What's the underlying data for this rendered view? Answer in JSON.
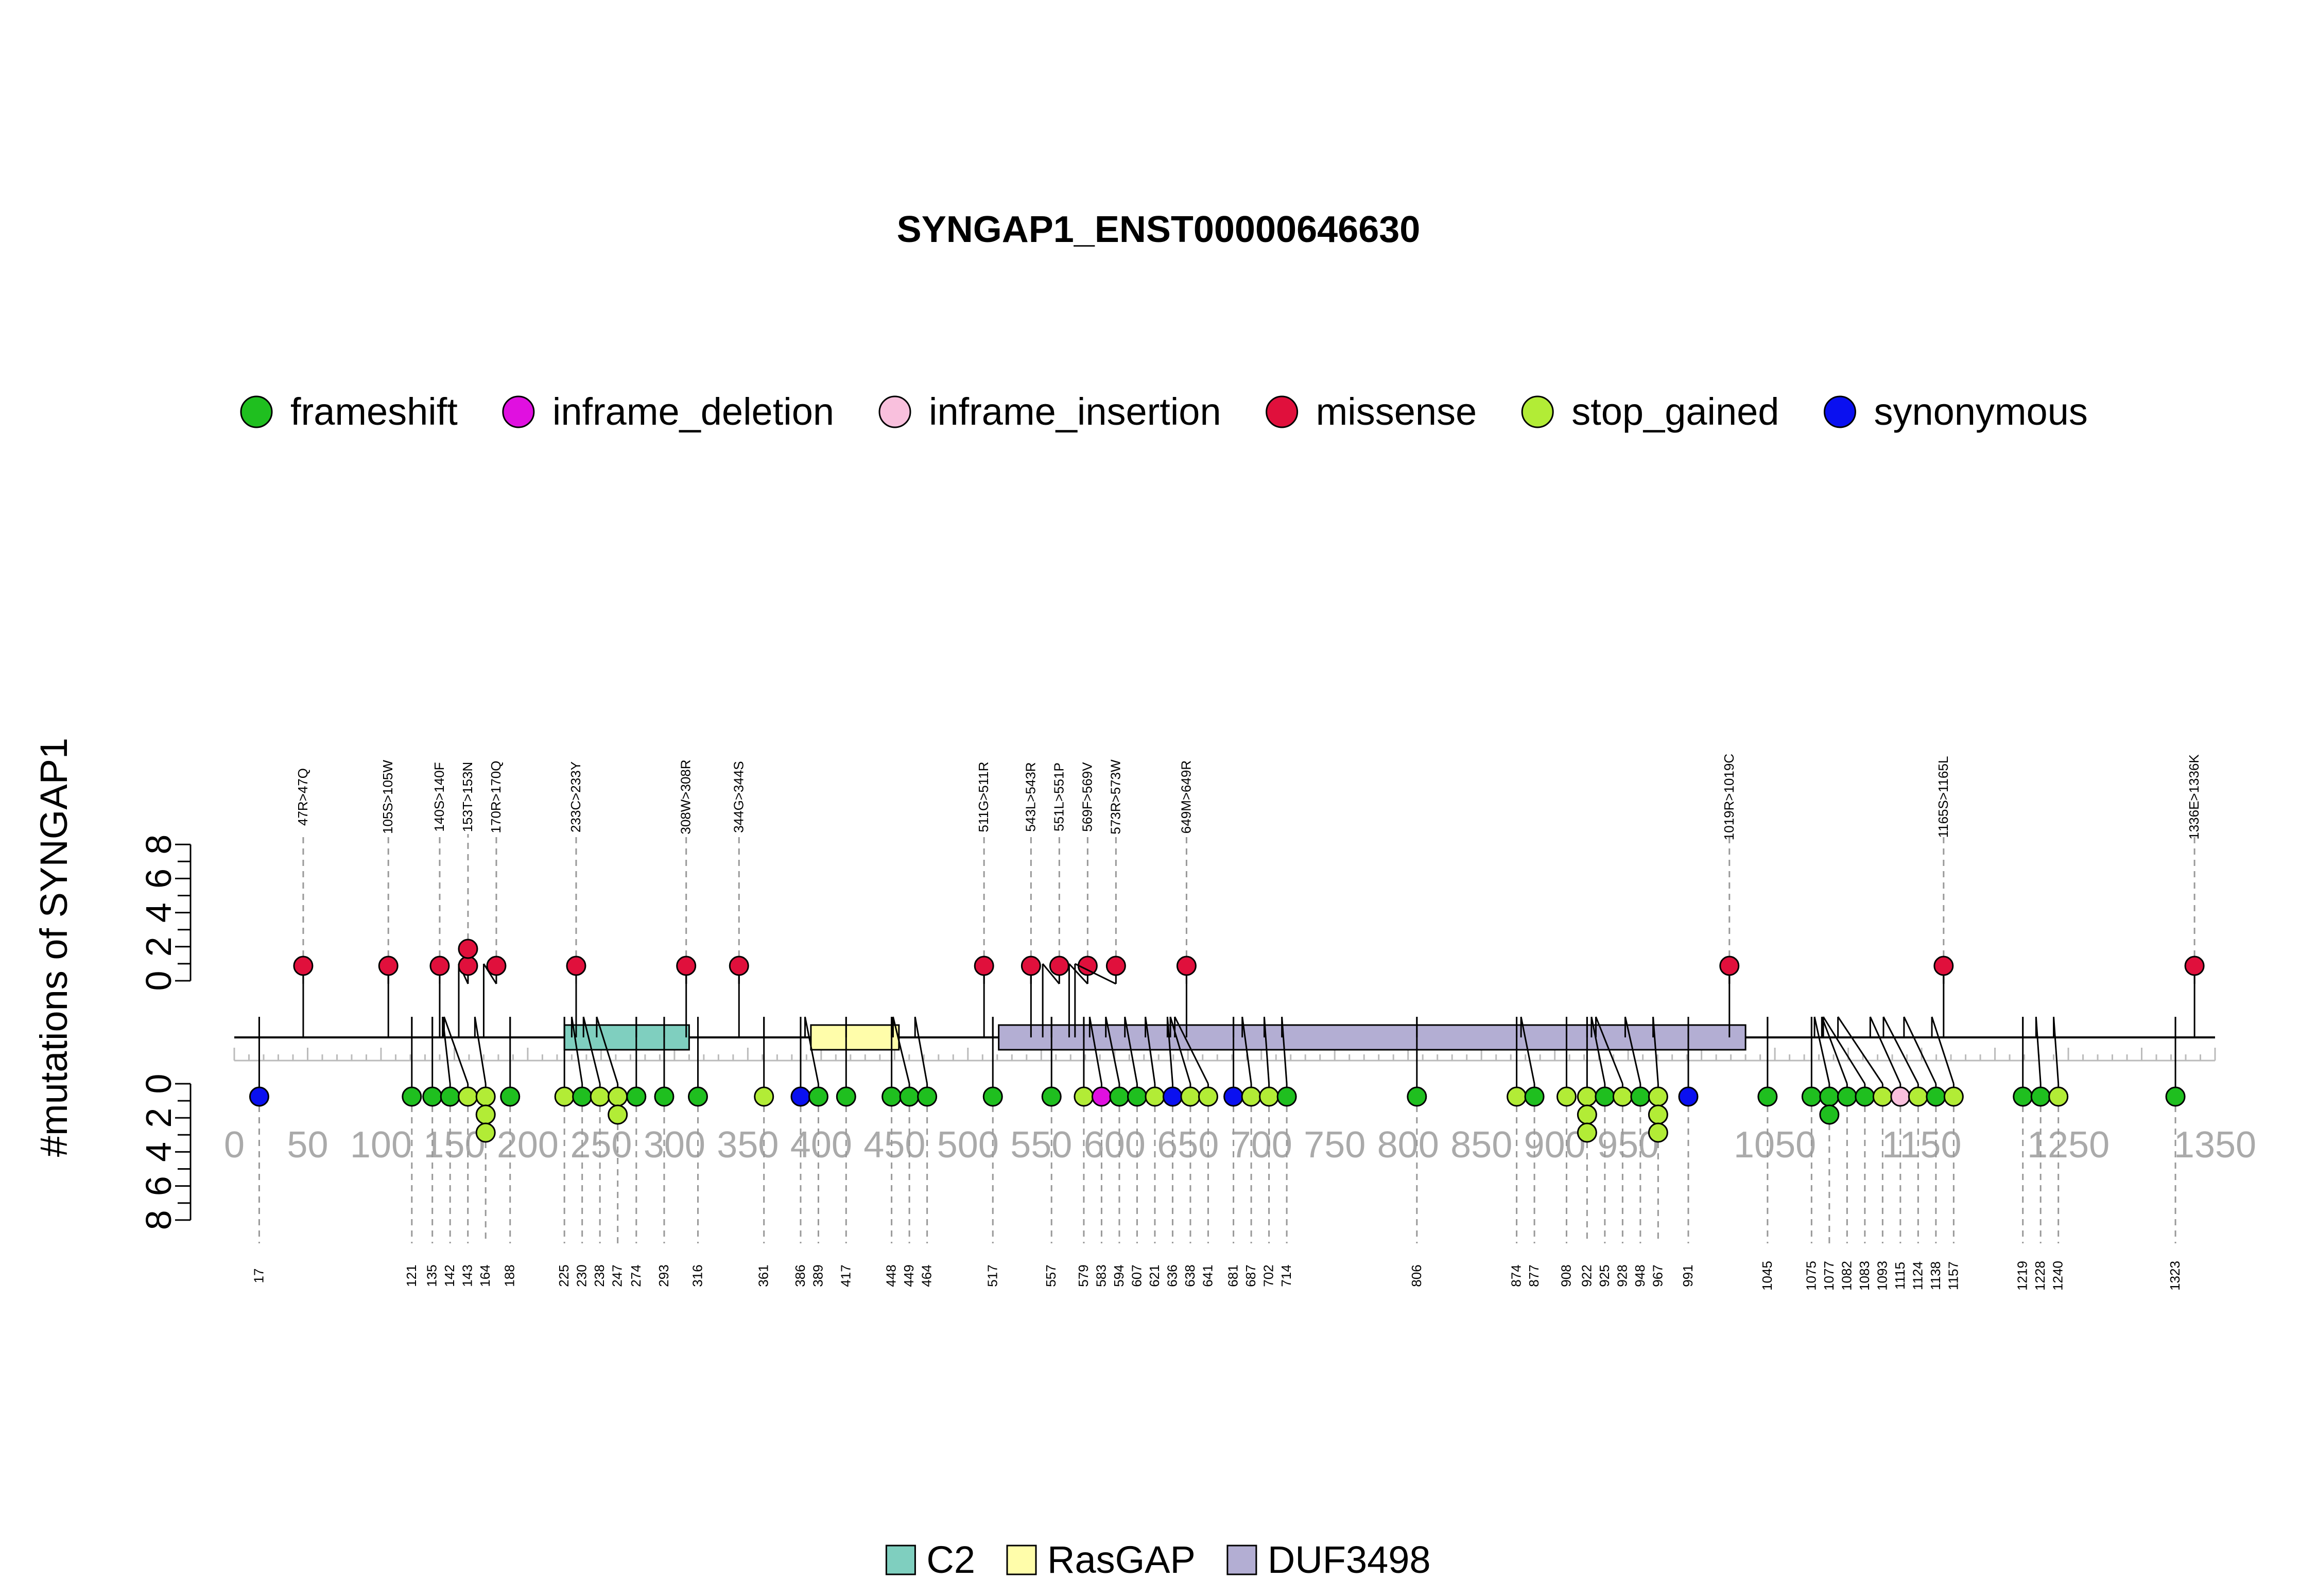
{
  "chart_data": {
    "type": "lollipop",
    "title": "SYNGAP1_ENST00000646630",
    "ylabel": "#mutations of SYNGAP1",
    "protein_length": 1350,
    "x_ticks": [
      0,
      50,
      100,
      150,
      200,
      250,
      300,
      350,
      400,
      450,
      500,
      550,
      600,
      650,
      700,
      750,
      800,
      850,
      900,
      950,
      1050,
      1150,
      1250,
      1350
    ],
    "x_tick_labels": [
      "0",
      "50",
      "100",
      "150",
      "200",
      "250",
      "300",
      "350",
      "400",
      "450",
      "500",
      "550",
      "600",
      "650",
      "700",
      "750",
      "800",
      "850",
      "900",
      "950",
      "1050",
      "1150",
      "1250",
      "1350"
    ],
    "y_ticks": [
      0,
      2,
      4,
      6,
      8
    ],
    "y_tick_labels": [
      "0",
      "2",
      "4",
      "6",
      "8"
    ],
    "legend_types": [
      {
        "name": "frameshift",
        "color": "#1fbf1f"
      },
      {
        "name": "inframe_deletion",
        "color": "#e010e0"
      },
      {
        "name": "inframe_insertion",
        "color": "#f9c0dd"
      },
      {
        "name": "missense",
        "color": "#e0103c"
      },
      {
        "name": "stop_gained",
        "color": "#b2ec36"
      },
      {
        "name": "synonymous",
        "color": "#0a10f0"
      }
    ],
    "domains": [
      {
        "name": "C2",
        "start": 225,
        "end": 310,
        "color": "#7fcfbf"
      },
      {
        "name": "RasGAP",
        "start": 393,
        "end": 453,
        "color": "#fffdaa"
      },
      {
        "name": "DUF3498",
        "start": 521,
        "end": 1030,
        "color": "#b3aed3"
      }
    ],
    "top_mutations": [
      {
        "pos": 47,
        "label": "47R>47Q",
        "type": "missense",
        "count": 1
      },
      {
        "pos": 105,
        "label": "105S>105W",
        "type": "missense",
        "count": 1
      },
      {
        "pos": 140,
        "label": "140S>140F",
        "type": "missense",
        "count": 1
      },
      {
        "pos": 153,
        "label": "153T>153N",
        "type": "missense",
        "count": 2
      },
      {
        "pos": 170,
        "label": "170R>170Q",
        "type": "missense",
        "count": 1
      },
      {
        "pos": 233,
        "label": "233C>233Y",
        "type": "missense",
        "count": 1
      },
      {
        "pos": 308,
        "label": "308W>308R",
        "type": "missense",
        "count": 1
      },
      {
        "pos": 344,
        "label": "344G>344S",
        "type": "missense",
        "count": 1
      },
      {
        "pos": 511,
        "label": "511G>511R",
        "type": "missense",
        "count": 1
      },
      {
        "pos": 543,
        "label": "543L>543R",
        "type": "missense",
        "count": 1
      },
      {
        "pos": 551,
        "label": "551L>551P",
        "type": "missense",
        "count": 1
      },
      {
        "pos": 569,
        "label": "569F>569V",
        "type": "missense",
        "count": 1
      },
      {
        "pos": 573,
        "label": "573R>573W",
        "type": "missense",
        "count": 1
      },
      {
        "pos": 649,
        "label": "649M>649R",
        "type": "missense",
        "count": 1
      },
      {
        "pos": 1019,
        "label": "1019R>1019C",
        "type": "missense",
        "count": 1
      },
      {
        "pos": 1165,
        "label": "1165S>1165L",
        "type": "missense",
        "count": 1
      },
      {
        "pos": 1336,
        "label": "1336E>1336K",
        "type": "missense",
        "count": 1
      }
    ],
    "bottom_mutations": [
      {
        "pos": 17,
        "label": "17",
        "types": [
          "synonymous"
        ]
      },
      {
        "pos": 121,
        "label": "121",
        "types": [
          "frameshift"
        ]
      },
      {
        "pos": 135,
        "label": "135",
        "types": [
          "frameshift"
        ]
      },
      {
        "pos": 142,
        "label": "142",
        "types": [
          "frameshift"
        ]
      },
      {
        "pos": 143,
        "label": "143",
        "types": [
          "stop_gained"
        ]
      },
      {
        "pos": 164,
        "label": "164",
        "types": [
          "stop_gained",
          "stop_gained",
          "stop_gained"
        ]
      },
      {
        "pos": 188,
        "label": "188",
        "types": [
          "frameshift"
        ]
      },
      {
        "pos": 225,
        "label": "225",
        "types": [
          "stop_gained"
        ]
      },
      {
        "pos": 230,
        "label": "230",
        "types": [
          "frameshift"
        ]
      },
      {
        "pos": 238,
        "label": "238",
        "types": [
          "stop_gained"
        ]
      },
      {
        "pos": 247,
        "label": "247",
        "types": [
          "stop_gained",
          "stop_gained"
        ]
      },
      {
        "pos": 274,
        "label": "274",
        "types": [
          "frameshift"
        ]
      },
      {
        "pos": 293,
        "label": "293",
        "types": [
          "frameshift"
        ]
      },
      {
        "pos": 316,
        "label": "316",
        "types": [
          "frameshift"
        ]
      },
      {
        "pos": 361,
        "label": "361",
        "types": [
          "stop_gained"
        ]
      },
      {
        "pos": 386,
        "label": "386",
        "types": [
          "synonymous"
        ]
      },
      {
        "pos": 389,
        "label": "389",
        "types": [
          "frameshift"
        ]
      },
      {
        "pos": 417,
        "label": "417",
        "types": [
          "frameshift"
        ]
      },
      {
        "pos": 448,
        "label": "448",
        "types": [
          "frameshift"
        ]
      },
      {
        "pos": 449,
        "label": "449",
        "types": [
          "frameshift"
        ]
      },
      {
        "pos": 464,
        "label": "464",
        "types": [
          "frameshift"
        ]
      },
      {
        "pos": 517,
        "label": "517",
        "types": [
          "frameshift"
        ]
      },
      {
        "pos": 557,
        "label": "557",
        "types": [
          "frameshift"
        ]
      },
      {
        "pos": 579,
        "label": "579",
        "types": [
          "stop_gained"
        ]
      },
      {
        "pos": 583,
        "label": "583",
        "types": [
          "inframe_deletion"
        ]
      },
      {
        "pos": 594,
        "label": "594",
        "types": [
          "frameshift"
        ]
      },
      {
        "pos": 607,
        "label": "607",
        "types": [
          "frameshift"
        ]
      },
      {
        "pos": 621,
        "label": "621",
        "types": [
          "stop_gained"
        ]
      },
      {
        "pos": 636,
        "label": "636",
        "types": [
          "synonymous"
        ]
      },
      {
        "pos": 638,
        "label": "638",
        "types": [
          "stop_gained"
        ]
      },
      {
        "pos": 641,
        "label": "641",
        "types": [
          "stop_gained"
        ]
      },
      {
        "pos": 681,
        "label": "681",
        "types": [
          "synonymous"
        ]
      },
      {
        "pos": 687,
        "label": "687",
        "types": [
          "stop_gained"
        ]
      },
      {
        "pos": 702,
        "label": "702",
        "types": [
          "stop_gained"
        ]
      },
      {
        "pos": 714,
        "label": "714",
        "types": [
          "frameshift"
        ]
      },
      {
        "pos": 806,
        "label": "806",
        "types": [
          "frameshift"
        ]
      },
      {
        "pos": 874,
        "label": "874",
        "types": [
          "stop_gained"
        ]
      },
      {
        "pos": 877,
        "label": "877",
        "types": [
          "frameshift"
        ]
      },
      {
        "pos": 908,
        "label": "908",
        "types": [
          "stop_gained"
        ]
      },
      {
        "pos": 922,
        "label": "922",
        "types": [
          "stop_gained",
          "stop_gained",
          "stop_gained"
        ]
      },
      {
        "pos": 925,
        "label": "925",
        "types": [
          "frameshift"
        ]
      },
      {
        "pos": 928,
        "label": "928",
        "types": [
          "stop_gained"
        ]
      },
      {
        "pos": 948,
        "label": "948",
        "types": [
          "frameshift"
        ]
      },
      {
        "pos": 967,
        "label": "967",
        "types": [
          "stop_gained",
          "stop_gained",
          "stop_gained"
        ]
      },
      {
        "pos": 991,
        "label": "991",
        "types": [
          "synonymous"
        ]
      },
      {
        "pos": 1045,
        "label": "1045",
        "types": [
          "frameshift"
        ]
      },
      {
        "pos": 1075,
        "label": "1075",
        "types": [
          "frameshift"
        ]
      },
      {
        "pos": 1077,
        "label": "1077",
        "types": [
          "frameshift",
          "frameshift"
        ]
      },
      {
        "pos": 1082,
        "label": "1082",
        "types": [
          "frameshift"
        ]
      },
      {
        "pos": 1083,
        "label": "1083",
        "types": [
          "frameshift"
        ]
      },
      {
        "pos": 1093,
        "label": "1093",
        "types": [
          "stop_gained"
        ]
      },
      {
        "pos": 1115,
        "label": "1115",
        "types": [
          "inframe_insertion"
        ]
      },
      {
        "pos": 1124,
        "label": "1124",
        "types": [
          "stop_gained"
        ]
      },
      {
        "pos": 1138,
        "label": "1138",
        "types": [
          "frameshift"
        ]
      },
      {
        "pos": 1157,
        "label": "1157",
        "types": [
          "stop_gained"
        ]
      },
      {
        "pos": 1219,
        "label": "1219",
        "types": [
          "frameshift"
        ]
      },
      {
        "pos": 1228,
        "label": "1228",
        "types": [
          "frameshift"
        ]
      },
      {
        "pos": 1240,
        "label": "1240",
        "types": [
          "stop_gained"
        ]
      },
      {
        "pos": 1323,
        "label": "1323",
        "types": [
          "frameshift"
        ]
      }
    ]
  }
}
